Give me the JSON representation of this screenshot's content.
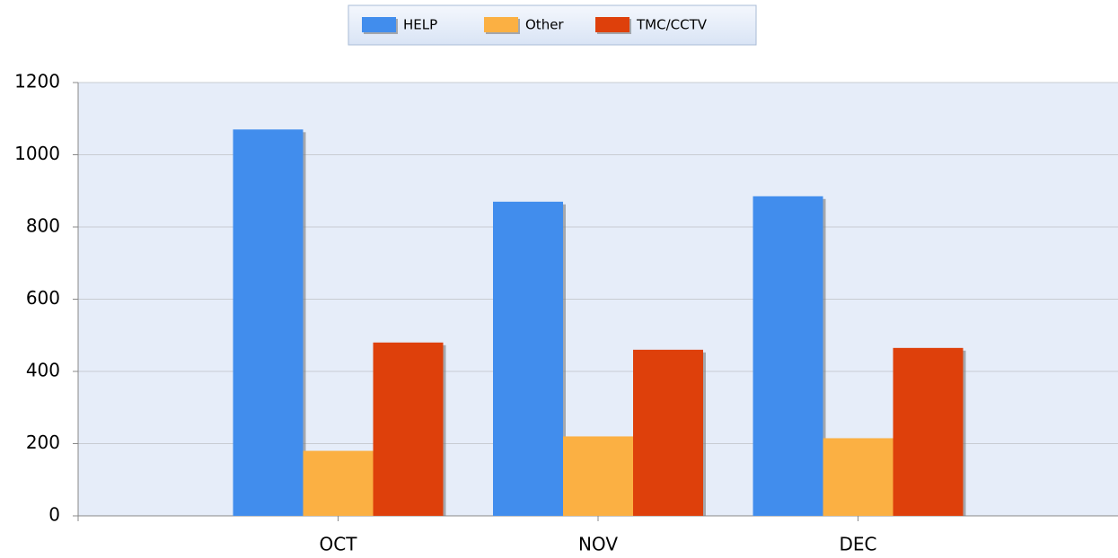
{
  "chart_data": {
    "type": "bar",
    "categories": [
      "OCT",
      "NOV",
      "DEC"
    ],
    "series": [
      {
        "name": "HELP",
        "color": "#418ded",
        "values": [
          1070,
          870,
          885
        ]
      },
      {
        "name": "Other",
        "color": "#fbb043",
        "values": [
          180,
          220,
          215
        ]
      },
      {
        "name": "TMC/CCTV",
        "color": "#de400b",
        "values": [
          480,
          460,
          465
        ]
      }
    ],
    "ylim": [
      0,
      1200
    ],
    "yticks": [
      0,
      200,
      400,
      600,
      800,
      1000,
      1200
    ],
    "grid": true,
    "legend": "top"
  }
}
